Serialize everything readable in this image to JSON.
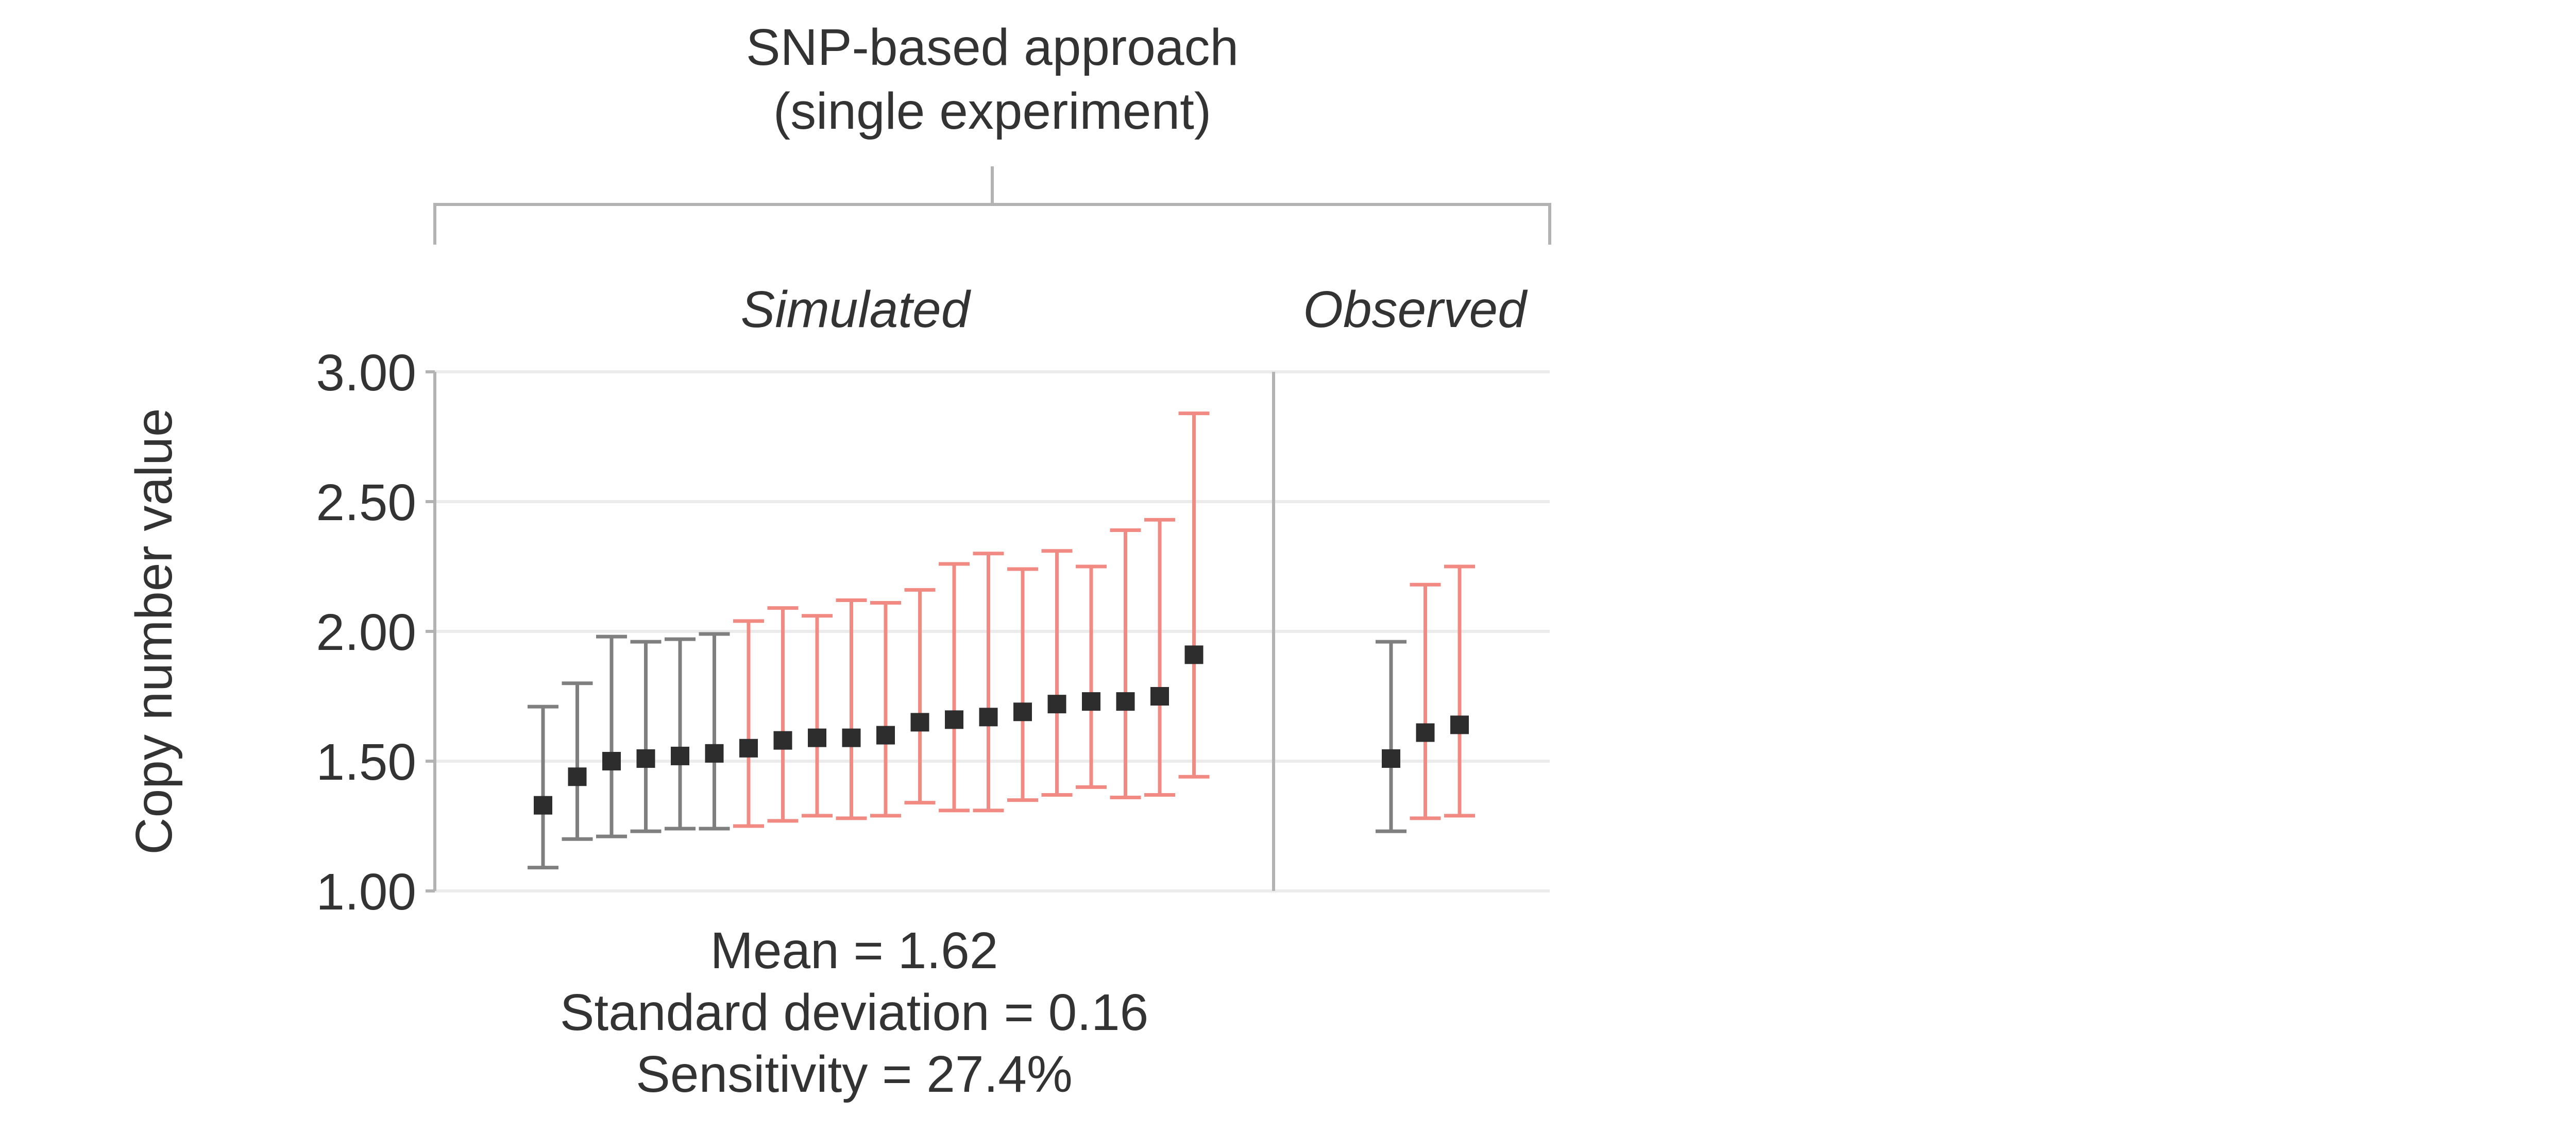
{
  "chart_data": {
    "type": "scatter",
    "title_lines": [
      "SNP-based approach",
      "(single experiment)"
    ],
    "ylabel": "Copy number value",
    "ylim": [
      1.0,
      3.0
    ],
    "y_ticks": [
      "1.00",
      "1.50",
      "2.00",
      "2.50",
      "3.00"
    ],
    "grid": true,
    "colors": {
      "below": "#7f7f7f",
      "above": "#f08a82",
      "point": "#2d2d2d"
    },
    "panels": [
      {
        "label": "Simulated",
        "points": [
          {
            "value": 1.33,
            "lower": 1.09,
            "upper": 1.71,
            "group": "below"
          },
          {
            "value": 1.44,
            "lower": 1.2,
            "upper": 1.8,
            "group": "below"
          },
          {
            "value": 1.5,
            "lower": 1.21,
            "upper": 1.98,
            "group": "below"
          },
          {
            "value": 1.51,
            "lower": 1.23,
            "upper": 1.96,
            "group": "below"
          },
          {
            "value": 1.52,
            "lower": 1.24,
            "upper": 1.97,
            "group": "below"
          },
          {
            "value": 1.53,
            "lower": 1.24,
            "upper": 1.99,
            "group": "below"
          },
          {
            "value": 1.55,
            "lower": 1.25,
            "upper": 2.04,
            "group": "above"
          },
          {
            "value": 1.58,
            "lower": 1.27,
            "upper": 2.09,
            "group": "above"
          },
          {
            "value": 1.59,
            "lower": 1.29,
            "upper": 2.06,
            "group": "above"
          },
          {
            "value": 1.59,
            "lower": 1.28,
            "upper": 2.12,
            "group": "above"
          },
          {
            "value": 1.6,
            "lower": 1.29,
            "upper": 2.11,
            "group": "above"
          },
          {
            "value": 1.65,
            "lower": 1.34,
            "upper": 2.16,
            "group": "above"
          },
          {
            "value": 1.66,
            "lower": 1.31,
            "upper": 2.26,
            "group": "above"
          },
          {
            "value": 1.67,
            "lower": 1.31,
            "upper": 2.3,
            "group": "above"
          },
          {
            "value": 1.69,
            "lower": 1.35,
            "upper": 2.24,
            "group": "above"
          },
          {
            "value": 1.72,
            "lower": 1.37,
            "upper": 2.31,
            "group": "above"
          },
          {
            "value": 1.73,
            "lower": 1.4,
            "upper": 2.25,
            "group": "above"
          },
          {
            "value": 1.73,
            "lower": 1.36,
            "upper": 2.39,
            "group": "above"
          },
          {
            "value": 1.75,
            "lower": 1.37,
            "upper": 2.43,
            "group": "above"
          },
          {
            "value": 1.91,
            "lower": 1.44,
            "upper": 2.84,
            "group": "above"
          }
        ]
      },
      {
        "label": "Observed",
        "points": [
          {
            "value": 1.51,
            "lower": 1.23,
            "upper": 1.96,
            "group": "below"
          },
          {
            "value": 1.61,
            "lower": 1.28,
            "upper": 2.18,
            "group": "above"
          },
          {
            "value": 1.64,
            "lower": 1.29,
            "upper": 2.25,
            "group": "above"
          }
        ]
      }
    ],
    "stats_lines": [
      "Mean = 1.62",
      "Standard deviation = 0.16",
      "Sensitivity = 27.4%"
    ]
  }
}
